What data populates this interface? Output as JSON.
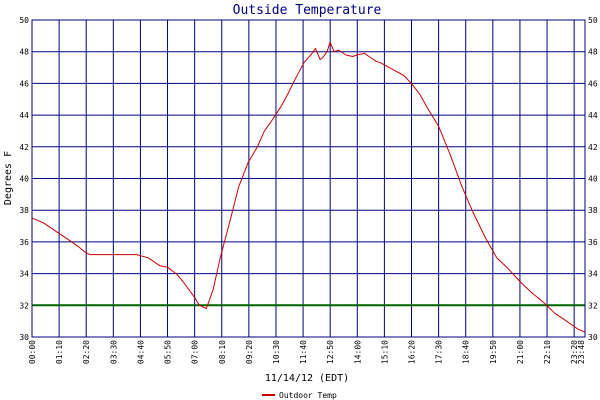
{
  "chart_data": {
    "type": "line",
    "title": "Outside Temperature",
    "ylabel": "Degrees F",
    "xlabel": "11/14/12 (EDT)",
    "ylim": [
      30,
      50
    ],
    "y_ticks": [
      30,
      32,
      34,
      36,
      38,
      40,
      42,
      44,
      46,
      48,
      50
    ],
    "x_ticks": [
      "00:00",
      "01:10",
      "02:20",
      "03:30",
      "04:40",
      "05:50",
      "07:00",
      "08:10",
      "09:20",
      "10:30",
      "11:40",
      "12:50",
      "14:00",
      "15:10",
      "16:20",
      "17:30",
      "18:40",
      "19:50",
      "21:00",
      "22:10",
      "23:20",
      "23:48"
    ],
    "x_range_hours": [
      0,
      23.8
    ],
    "grid": true,
    "reference_line": {
      "y": 32,
      "color": "#006400"
    },
    "colors": {
      "frame": "#000080",
      "grid": "#000080",
      "series": "#cc0000",
      "title": "#000080"
    },
    "legend_position": "bottom-center",
    "series": [
      {
        "name": "Outdoor Temp",
        "x_hours": [
          0,
          0.5,
          1.0,
          1.5,
          2.0,
          2.33,
          2.5,
          3.0,
          3.5,
          4.0,
          4.5,
          5.0,
          5.5,
          5.83,
          6.2,
          6.5,
          7.0,
          7.2,
          7.5,
          7.8,
          8.1,
          8.5,
          8.9,
          9.3,
          9.7,
          10.0,
          10.3,
          10.7,
          11.0,
          11.3,
          11.7,
          12.0,
          12.2,
          12.4,
          12.5,
          12.7,
          12.83,
          13.0,
          13.2,
          13.5,
          13.8,
          14.0,
          14.3,
          14.6,
          14.8,
          15.0,
          15.5,
          16.0,
          16.33,
          16.7,
          17.0,
          17.5,
          18.0,
          18.5,
          19.0,
          19.5,
          20.0,
          20.5,
          21.0,
          21.5,
          22.0,
          22.5,
          23.0,
          23.5,
          23.8
        ],
        "y_values": [
          37.5,
          37.2,
          36.7,
          36.2,
          35.7,
          35.3,
          35.2,
          35.2,
          35.2,
          35.2,
          35.2,
          35.0,
          34.5,
          34.4,
          34.0,
          33.5,
          32.5,
          32.0,
          31.8,
          33.0,
          35.0,
          37.2,
          39.5,
          41.0,
          42.0,
          43.0,
          43.6,
          44.5,
          45.3,
          46.2,
          47.3,
          47.8,
          48.2,
          47.5,
          47.6,
          48.0,
          48.6,
          48.0,
          48.1,
          47.8,
          47.7,
          47.8,
          47.9,
          47.6,
          47.4,
          47.3,
          46.9,
          46.5,
          46.0,
          45.3,
          44.5,
          43.3,
          41.5,
          39.5,
          37.8,
          36.3,
          35.0,
          34.3,
          33.5,
          32.8,
          32.2,
          31.5,
          31.0,
          30.5,
          30.3
        ]
      }
    ]
  }
}
